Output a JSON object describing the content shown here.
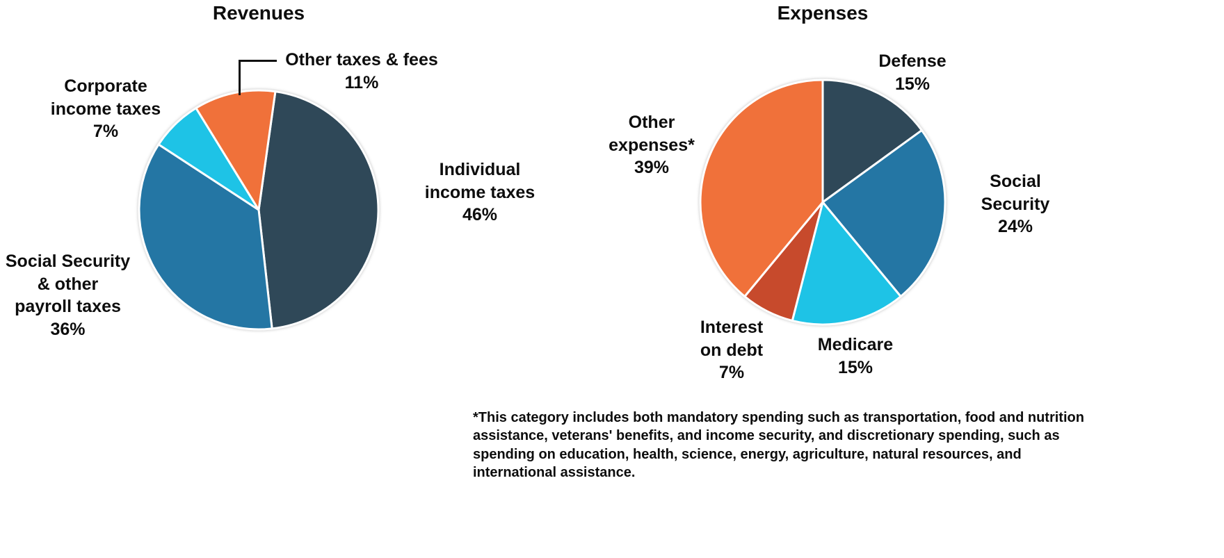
{
  "charts": [
    {
      "title": "Revenues",
      "labels": {
        "other_taxes": "Other taxes & fees\n11%",
        "corporate": "Corporate\nincome taxes\n7%",
        "individual": "Individual\nincome taxes\n46%",
        "payroll": "Social Security\n& other\npayroll taxes\n36%"
      }
    },
    {
      "title": "Expenses",
      "labels": {
        "defense": "Defense\n15%",
        "social_security": "Social\nSecurity\n24%",
        "medicare": "Medicare\n15%",
        "interest": "Interest\non debt\n7%",
        "other_expenses": "Other\nexpenses*\n39%"
      },
      "footnote": "*This category includes both mandatory spending such as transportation, food and nutrition assistance, veterans' benefits, and income security, and discretionary spending, such as spending on education, health, science, energy, agriculture, natural resources, and international assistance."
    }
  ],
  "chart_data": [
    {
      "type": "pie",
      "title": "Revenues",
      "categories": [
        "Individual income taxes",
        "Social Security & other payroll taxes",
        "Corporate income taxes",
        "Other taxes & fees"
      ],
      "values": [
        46,
        36,
        7,
        11
      ],
      "unit": "percent",
      "colors": [
        "#2f4858",
        "#2476a4",
        "#1ec3e6",
        "#f0713a"
      ],
      "slice_ids": [
        "individual-income-taxes",
        "payroll-taxes",
        "corporate-income-taxes",
        "other-taxes-fees"
      ],
      "legend": "none",
      "labels_on_chart": true
    },
    {
      "type": "pie",
      "title": "Expenses",
      "categories": [
        "Defense",
        "Social Security",
        "Medicare",
        "Interest on debt",
        "Other expenses*"
      ],
      "values": [
        15,
        24,
        15,
        7,
        39
      ],
      "unit": "percent",
      "colors": [
        "#2f4858",
        "#2476a4",
        "#1ec3e6",
        "#c74a2c",
        "#f0713a"
      ],
      "slice_ids": [
        "defense",
        "social-security",
        "medicare",
        "interest-on-debt",
        "other-expenses"
      ],
      "legend": "none",
      "labels_on_chart": true
    }
  ],
  "accent_colors": {
    "navy": "#2f4858",
    "blue": "#2476a4",
    "cyan": "#1ec3e6",
    "red": "#c74a2c",
    "orange": "#f0713a",
    "text": "#0d0d0d"
  }
}
